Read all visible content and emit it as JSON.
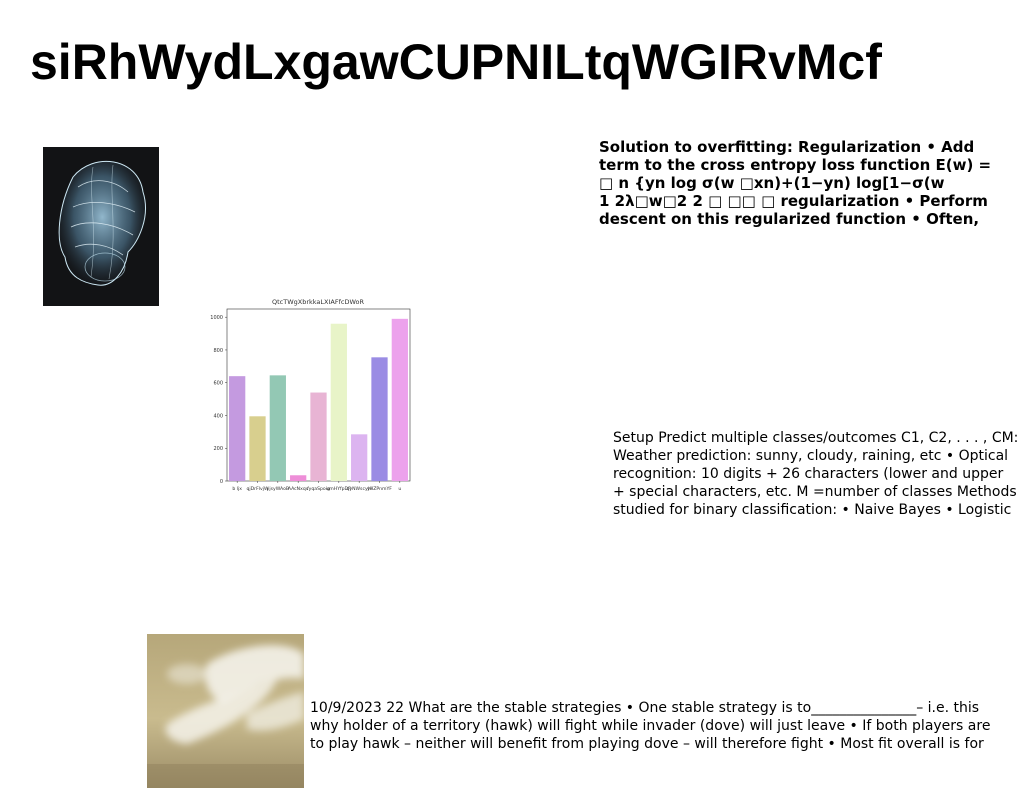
{
  "page": {
    "title": "siRhWydLxgawCUPNILtqWGIRvMcf"
  },
  "blocks": {
    "overfitting": {
      "lines": [
        "Solution to overfitting: Regularization • Add",
        "term to the cross entropy loss function E(w) =",
        "□ n {yn log σ(w □xn)+(1−yn) log[1−σ(w",
        "1 2λ□w□2 2 □ □□ □ regularization • Perform",
        "descent on this regularized function • Often,"
      ]
    },
    "multiclass": {
      "lines": [
        "Setup Predict multiple classes/outcomes C1, C2, . . . , CM:",
        "Weather prediction: sunny, cloudy, raining, etc • Optical",
        "recognition: 10 digits + 26 characters (lower and upper",
        "+ special characters, etc. M =number of classes Methods",
        "studied for binary classification: • Naive Bayes • Logistic"
      ]
    },
    "strategies": {
      "lines": [
        "10/9/2023 22 What are the stable strategies • One stable strategy is to_______________– i.e. this",
        "why holder of a territory (hawk) will fight while invader (dove) will just leave • If both players are",
        "to play hawk – neither will benefit from playing dove – will therefore fight • Most fit overall is for"
      ]
    }
  },
  "images": {
    "brain": "brain-scan-illustration",
    "sky": "cloudy-sky-photo"
  },
  "chart_data": {
    "type": "bar",
    "title": "QtcTWgXbrkkaLXIAFfcDWoR",
    "xlabel": "",
    "ylabel": "",
    "ylim": [
      0,
      1050
    ],
    "yticks": [
      0,
      200,
      400,
      600,
      800,
      1000
    ],
    "grid": false,
    "categories": [
      "b ljx",
      "qjDrFlvjW",
      "yjsyWAoB",
      "AAcNxqv",
      "fyqaSpoig",
      "umHYfpDR",
      "qyNWscyhl",
      "yHZPnmYF",
      "u"
    ],
    "values": [
      640,
      395,
      645,
      35,
      540,
      960,
      285,
      755,
      990
    ],
    "colors": [
      "#c49ae0",
      "#d8cf8e",
      "#93c8b4",
      "#ee8ed8",
      "#e8b4d4",
      "#e8f4c8",
      "#dcb4f0",
      "#9a8ce4",
      "#eca2ec"
    ]
  }
}
